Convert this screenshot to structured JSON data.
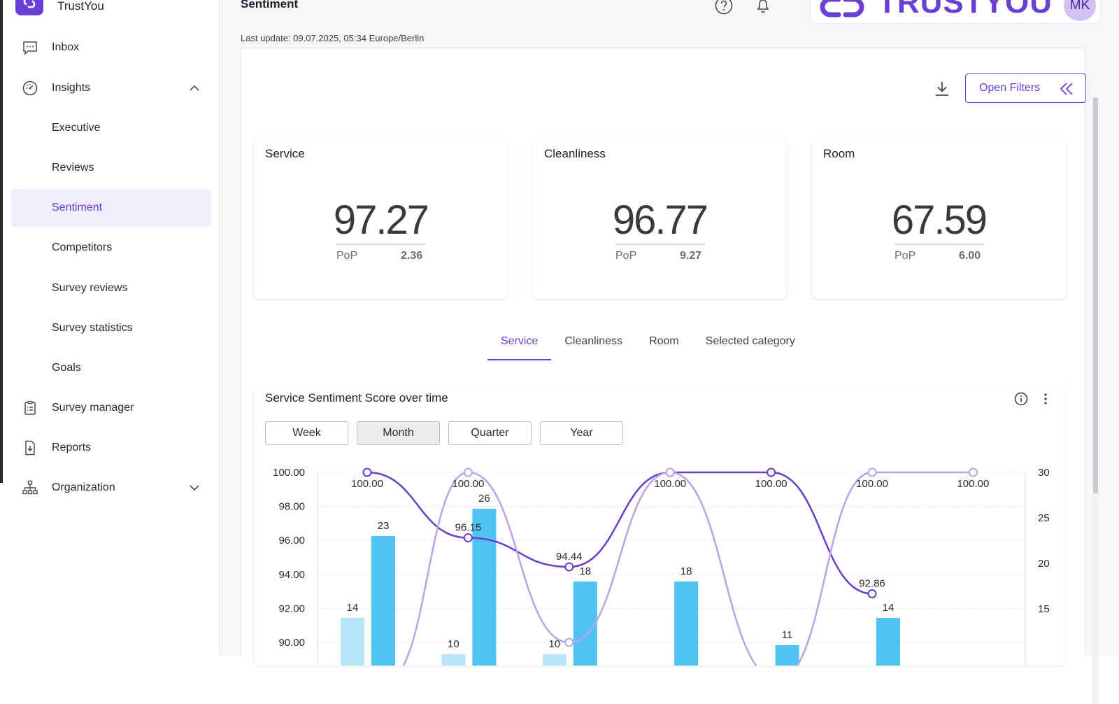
{
  "app": {
    "name": "TrustYou"
  },
  "sidebar": {
    "items": [
      {
        "label": "Inbox"
      },
      {
        "label": "Insights"
      },
      {
        "label": "Executive"
      },
      {
        "label": "Reviews"
      },
      {
        "label": "Sentiment"
      },
      {
        "label": "Competitors"
      },
      {
        "label": "Survey reviews"
      },
      {
        "label": "Survey statistics"
      },
      {
        "label": "Goals"
      },
      {
        "label": "Survey manager"
      },
      {
        "label": "Reports"
      },
      {
        "label": "Organization"
      }
    ],
    "active": "Sentiment"
  },
  "header": {
    "title": "Sentiment",
    "banner_text": "TRUSTYOU",
    "avatar_initials": "MK",
    "last_update": "Last update: 09.07.2025, 05:34 Europe/Berlin"
  },
  "toolbar": {
    "filters_label": "Open Filters"
  },
  "kpis": [
    {
      "title": "Service",
      "value": "97.27",
      "pop_label": "PoP",
      "pop_value": "2.36"
    },
    {
      "title": "Cleanliness",
      "value": "96.77",
      "pop_label": "PoP",
      "pop_value": "9.27"
    },
    {
      "title": "Room",
      "value": "67.59",
      "pop_label": "PoP",
      "pop_value": "6.00"
    }
  ],
  "tabs": [
    {
      "label": "Service",
      "active": true
    },
    {
      "label": "Cleanliness",
      "active": false
    },
    {
      "label": "Room",
      "active": false
    },
    {
      "label": "Selected category",
      "active": false
    }
  ],
  "chart_card": {
    "title": "Service Sentiment Score over time",
    "periods": [
      {
        "label": "Week",
        "selected": false
      },
      {
        "label": "Month",
        "selected": true
      },
      {
        "label": "Quarter",
        "selected": false
      },
      {
        "label": "Year",
        "selected": false
      }
    ]
  },
  "colors": {
    "accent": "#6a3fd6",
    "line_dark": "#6a3fc6",
    "line_light": "#b8a4e6",
    "bar_dark": "#4fc3f2",
    "bar_light": "#b6e4f8"
  },
  "chart_data": {
    "type": "bar+line",
    "x": [
      0,
      1,
      2,
      3,
      4,
      5,
      6
    ],
    "y_left": {
      "ticks": [
        "100.00",
        "98.00",
        "96.00",
        "94.00",
        "92.00",
        "90.00"
      ],
      "range": [
        90,
        100
      ]
    },
    "y_right": {
      "ticks": [
        "30",
        "25",
        "20",
        "15"
      ],
      "range": [
        10,
        30
      ]
    },
    "series": [
      {
        "kind": "line",
        "color": "dark",
        "values": [
          100.0,
          96.15,
          94.44,
          100.0,
          100.0,
          92.86,
          null
        ],
        "labels": [
          "100.00",
          "96.15",
          "94.44",
          "100.00",
          "100.00",
          "92.86",
          ""
        ]
      },
      {
        "kind": "line",
        "color": "light",
        "values": [
          null,
          100.0,
          90.0,
          100.0,
          null,
          100.0,
          100.0
        ],
        "labels": [
          "",
          "100.00",
          "",
          "",
          "",
          "100.00",
          "100.00"
        ]
      },
      {
        "kind": "bar",
        "color": "light",
        "values": [
          14,
          10,
          10,
          null,
          null,
          null,
          null
        ],
        "labels": [
          "14",
          "10",
          "10",
          "",
          "",
          "",
          ""
        ]
      },
      {
        "kind": "bar",
        "color": "dark",
        "values": [
          23,
          26,
          18,
          18,
          11,
          14,
          null
        ],
        "labels": [
          "23",
          "26",
          "18",
          "18",
          "11",
          "14",
          ""
        ]
      }
    ]
  }
}
